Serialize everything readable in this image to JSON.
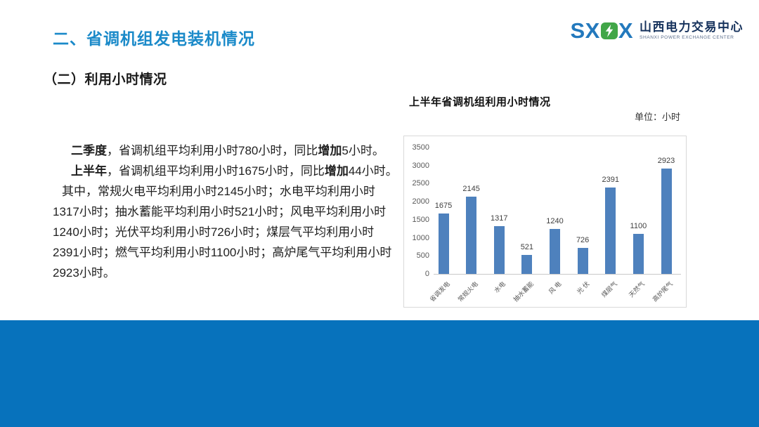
{
  "page": {
    "title": "二、省调机组发电装机情况",
    "subtitle": "（二）利用小时情况"
  },
  "logo": {
    "acronym_left": "SX",
    "acronym_right": "X",
    "name_cn": "山西电力交易中心",
    "name_en": "SHANXI POWER EXCHANGE CENTER"
  },
  "body": {
    "lines": [
      {
        "indent": 2,
        "segments": [
          {
            "text": "二季度",
            "bold": true
          },
          {
            "text": "，省调机组平均利用小时780小时，同比",
            "bold": false
          },
          {
            "text": "增加",
            "bold": true
          },
          {
            "text": "5小时。",
            "bold": false
          }
        ]
      },
      {
        "indent": 2,
        "segments": [
          {
            "text": "上半年",
            "bold": true
          },
          {
            "text": "，省调机组平均利用小时1675小时，同比",
            "bold": false
          },
          {
            "text": "增加",
            "bold": true
          },
          {
            "text": "44小时。",
            "bold": false
          }
        ]
      },
      {
        "indent": 1,
        "segments": [
          {
            "text": "其中，常规火电平均利用小时2145小时；水电平均利用小时",
            "bold": false
          }
        ]
      },
      {
        "indent": 0,
        "segments": [
          {
            "text": "1317小时；抽水蓄能平均利用小时521小时；风电平均利用小时",
            "bold": false
          }
        ]
      },
      {
        "indent": 0,
        "segments": [
          {
            "text": "1240小时；光伏平均利用小时726小时；煤层气平均利用小时",
            "bold": false
          }
        ]
      },
      {
        "indent": 0,
        "segments": [
          {
            "text": "2391小时；燃气平均利用小时1100小时；高炉尾气平均利用小时",
            "bold": false
          }
        ]
      },
      {
        "indent": 0,
        "segments": [
          {
            "text": "2923小时。",
            "bold": false
          }
        ]
      }
    ]
  },
  "chart": {
    "title": "上半年省调机组利用小时情况",
    "unit_label": "单位：小时"
  },
  "chart_data": {
    "type": "bar",
    "title": "上半年省调机组利用小时情况",
    "unit": "单位：小时",
    "categories": [
      "省调发电",
      "常规火电",
      "水电",
      "抽水蓄能",
      "风 电",
      "光 伏",
      "煤层气",
      "天然气",
      "高炉尾气"
    ],
    "values": [
      1675,
      2145,
      1317,
      521,
      1240,
      726,
      2391,
      1100,
      2923
    ],
    "xlabel": "",
    "ylabel": "",
    "ylim": [
      0,
      3500
    ],
    "ytick_step": 500,
    "grid": false,
    "legend": "none",
    "bar_color": "#4E81BD",
    "data_labels": true
  },
  "colors": {
    "title_blue": "#1B8AC9",
    "footer_blue": "#0772BC",
    "bar_blue": "#4E81BD",
    "logo_blue": "#2379BD",
    "logo_green": "#41A648",
    "logo_navy": "#16325C",
    "logo_gray": "#5B6E8C",
    "axis_text": "#595959",
    "chart_border": "#D9D9D9"
  }
}
